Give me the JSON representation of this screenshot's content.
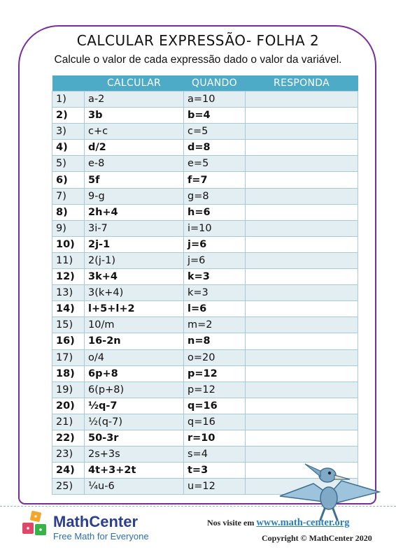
{
  "title": "CALCULAR EXPRESSÃO- FOLHA 2",
  "subtitle": "Calcule o valor de cada expressão dado o valor da variável.",
  "table": {
    "headers": [
      "",
      "CALCULAR",
      "QUANDO",
      "RESPONDA"
    ],
    "rows": [
      {
        "num": "1)",
        "expr": "a-2",
        "when": "a=10",
        "answer": ""
      },
      {
        "num": "2)",
        "expr": "3b",
        "when": "b=4",
        "answer": ""
      },
      {
        "num": "3)",
        "expr": "c+c",
        "when": "c=5",
        "answer": ""
      },
      {
        "num": "4)",
        "expr": "d/2",
        "when": "d=8",
        "answer": ""
      },
      {
        "num": "5)",
        "expr": "e-8",
        "when": "e=5",
        "answer": ""
      },
      {
        "num": "6)",
        "expr": "5f",
        "when": "f=7",
        "answer": ""
      },
      {
        "num": "7)",
        "expr": "9-g",
        "when": "g=8",
        "answer": ""
      },
      {
        "num": "8)",
        "expr": "2h+4",
        "when": "h=6",
        "answer": ""
      },
      {
        "num": "9)",
        "expr": "3i-7",
        "when": "i=10",
        "answer": ""
      },
      {
        "num": "10)",
        "expr": "2j-1",
        "when": "j=6",
        "answer": ""
      },
      {
        "num": "11)",
        "expr": "2(j-1)",
        "when": "j=6",
        "answer": ""
      },
      {
        "num": "12)",
        "expr": "3k+4",
        "when": "k=3",
        "answer": ""
      },
      {
        "num": "13)",
        "expr": "3(k+4)",
        "when": "k=3",
        "answer": ""
      },
      {
        "num": "14)",
        "expr": "l+5+l+2",
        "when": "l=6",
        "answer": ""
      },
      {
        "num": "15)",
        "expr": "10/m",
        "when": "m=2",
        "answer": ""
      },
      {
        "num": "16)",
        "expr": "16-2n",
        "when": "n=8",
        "answer": ""
      },
      {
        "num": "17)",
        "expr": "o/4",
        "when": "o=20",
        "answer": ""
      },
      {
        "num": "18)",
        "expr": "6p+8",
        "when": "p=12",
        "answer": ""
      },
      {
        "num": "19)",
        "expr": "6(p+8)",
        "when": "p=12",
        "answer": ""
      },
      {
        "num": "20)",
        "expr": "½q-7",
        "when": "q=16",
        "answer": ""
      },
      {
        "num": "21)",
        "expr": "½(q-7)",
        "when": "q=16",
        "answer": ""
      },
      {
        "num": "22)",
        "expr": "50-3r",
        "when": "r=10",
        "answer": ""
      },
      {
        "num": "23)",
        "expr": "2s+3s",
        "when": "s=4",
        "answer": ""
      },
      {
        "num": "24)",
        "expr": "4t+3+2t",
        "when": "t=3",
        "answer": ""
      },
      {
        "num": "25)",
        "expr": "¼u-6",
        "when": "u=12",
        "answer": ""
      }
    ]
  },
  "footer": {
    "brand": "MathCenter",
    "tagline": "Free Math for Everyone",
    "visit_prefix": "Nos visite em",
    "visit_link": "www.math-center.org",
    "copyright": "Copyright © MathCenter 2020"
  },
  "colors": {
    "frame": "#7a2d99",
    "header_bg": "#4dabc8",
    "row_alt": "#e3eef3",
    "brand": "#2b3f8c",
    "link": "#2a7fc0"
  },
  "icons": {
    "logo": "dice-cubes-logo",
    "mascot": "pterodactyl-illustration"
  }
}
